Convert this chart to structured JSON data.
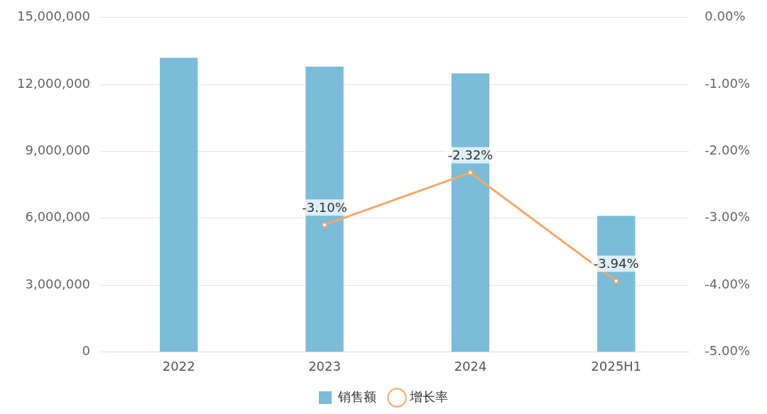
{
  "chart_data": {
    "type": "bar",
    "categories": [
      "2022",
      "2023",
      "2024",
      "2025H1"
    ],
    "series": [
      {
        "name": "销售额",
        "color": "#7bbcd9",
        "values": [
          13200000,
          12800000,
          12500000,
          6100000
        ]
      },
      {
        "name": "增长率",
        "type": "line",
        "axis": "y2",
        "color": "#f0aa6a",
        "values": [
          null,
          -3.1,
          -2.32,
          -3.94
        ],
        "value_labels": [
          null,
          "-3.10%",
          "-2.32%",
          "-3.94%"
        ]
      }
    ],
    "ylim": [
      0,
      15000000
    ],
    "yticks": [
      {
        "value": 0,
        "label": "0"
      },
      {
        "value": 3000000,
        "label": "3,000,000"
      },
      {
        "value": 6000000,
        "label": "6,000,000"
      },
      {
        "value": 9000000,
        "label": "9,000,000"
      },
      {
        "value": 12000000,
        "label": "12,000,000"
      },
      {
        "value": 15000000,
        "label": "15,000,000"
      }
    ],
    "y2lim": [
      -5,
      0
    ],
    "y2ticks": [
      {
        "value": -5,
        "label": "-5.00%"
      },
      {
        "value": -4,
        "label": "-4.00%"
      },
      {
        "value": -3,
        "label": "-3.00%"
      },
      {
        "value": -2,
        "label": "-2.00%"
      },
      {
        "value": -1,
        "label": "-1.00%"
      },
      {
        "value": 0,
        "label": "0.00%"
      }
    ],
    "grid": "y",
    "legend": "bottom",
    "marker": "circle"
  }
}
